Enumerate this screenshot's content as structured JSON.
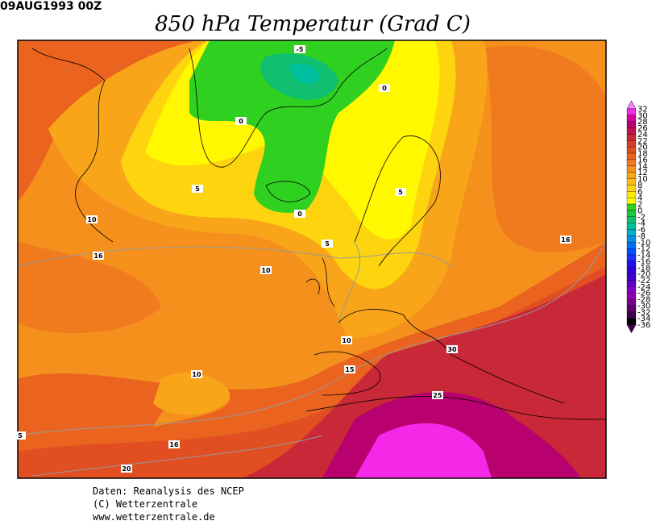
{
  "header": {
    "date": "09AUG1993 00Z",
    "title": "850 hPa Temperatur (Grad C)"
  },
  "colorbar": {
    "labels": [
      32,
      30,
      28,
      26,
      24,
      22,
      20,
      18,
      16,
      14,
      12,
      10,
      8,
      6,
      4,
      2,
      0,
      -2,
      -4,
      -6,
      -8,
      -10,
      -12,
      -14,
      -16,
      -18,
      -20,
      -22,
      -24,
      -26,
      -28,
      -30,
      -32,
      -34,
      -36
    ],
    "colors": [
      "#ff80ff",
      "#f428e6",
      "#d8009e",
      "#b8006e",
      "#c0124e",
      "#c82838",
      "#d43c2c",
      "#e04e22",
      "#ea6420",
      "#f07a1e",
      "#f5901c",
      "#f8a51a",
      "#fbbd14",
      "#fdd40e",
      "#ffe808",
      "#fff800",
      "#30d020",
      "#20c840",
      "#10c070",
      "#00c0a0",
      "#00b0c8",
      "#0090e0",
      "#0070f0",
      "#0050ff",
      "#2030ff",
      "#2010f0",
      "#3000e0",
      "#4000d0",
      "#6000c8",
      "#8000c0",
      "#9000b0",
      "#7a0090",
      "#600070",
      "#400050"
    ]
  },
  "contour_labels": [
    -5,
    0,
    0,
    0,
    5,
    5,
    5,
    10,
    16,
    10,
    10,
    15,
    30,
    25,
    10,
    16,
    5,
    16,
    20
  ],
  "credits": [
    "Daten: Reanalysis des NCEP",
    "(C) Wetterzentrale",
    "www.wetterzentrale.de"
  ]
}
